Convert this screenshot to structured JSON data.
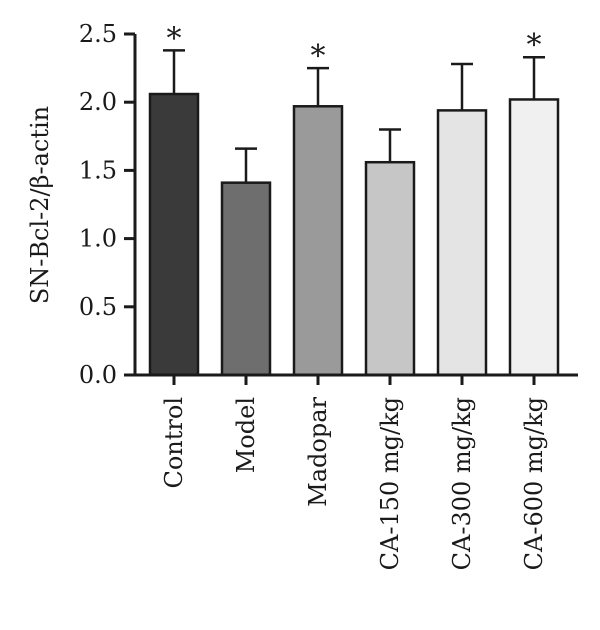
{
  "chart_data": {
    "type": "bar",
    "title": "",
    "xlabel": "",
    "ylabel": "SN-Bcl-2/β-actin",
    "ylim": [
      0,
      2.5
    ],
    "yticks": [
      "0.0",
      "0.5",
      "1.0",
      "1.5",
      "2.0",
      "2.5"
    ],
    "grid": false,
    "categories": [
      "Control",
      "Model",
      "Madopar",
      "CA-150 mg/kg",
      "CA-300 mg/kg",
      "CA-600 mg/kg"
    ],
    "values": [
      2.06,
      1.41,
      1.97,
      1.56,
      1.94,
      2.02
    ],
    "error": [
      0.32,
      0.25,
      0.28,
      0.24,
      0.34,
      0.31
    ],
    "significance": [
      "*",
      "",
      "*",
      "",
      "",
      "*"
    ],
    "bar_colors": [
      "#3a3a3a",
      "#6e6e6e",
      "#9a9a9a",
      "#c6c6c6",
      "#e4e4e4",
      "#f0f0f0"
    ]
  }
}
